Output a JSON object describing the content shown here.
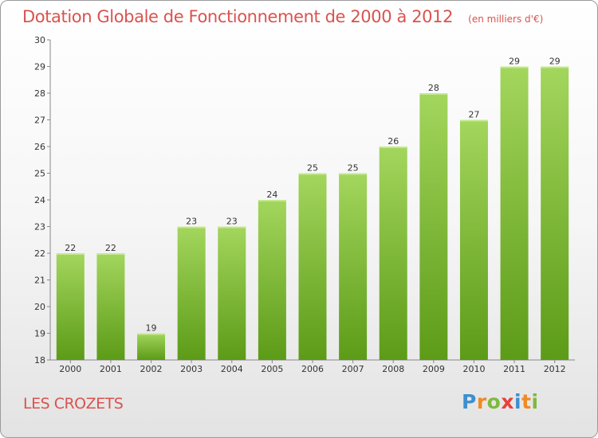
{
  "title": "Dotation Globale de Fonctionnement de 2000 à 2012",
  "unit_label": "(en milliers d'€)",
  "commune": "LES CROZETS",
  "logo": {
    "letters": [
      "P",
      "r",
      "o",
      "x",
      "i",
      "t",
      "i"
    ]
  },
  "colors": {
    "title": "#d9534f",
    "bar_light": "#9fd45a",
    "bar_dark": "#5f9e1a",
    "logo_blue": "#3d8fcf",
    "logo_orange": "#f08a24",
    "logo_green": "#7fb93e",
    "logo_red": "#e8403a"
  },
  "chart_data": {
    "type": "bar",
    "categories": [
      "2000",
      "2001",
      "2002",
      "2003",
      "2004",
      "2005",
      "2006",
      "2007",
      "2008",
      "2009",
      "2010",
      "2011",
      "2012"
    ],
    "values": [
      22,
      22,
      19,
      23,
      23,
      24,
      25,
      25,
      26,
      28,
      27,
      29,
      29
    ],
    "ylim": [
      18,
      30
    ],
    "yticks": [
      18,
      19,
      20,
      21,
      22,
      23,
      24,
      25,
      26,
      27,
      28,
      29,
      30
    ],
    "grid": false
  }
}
